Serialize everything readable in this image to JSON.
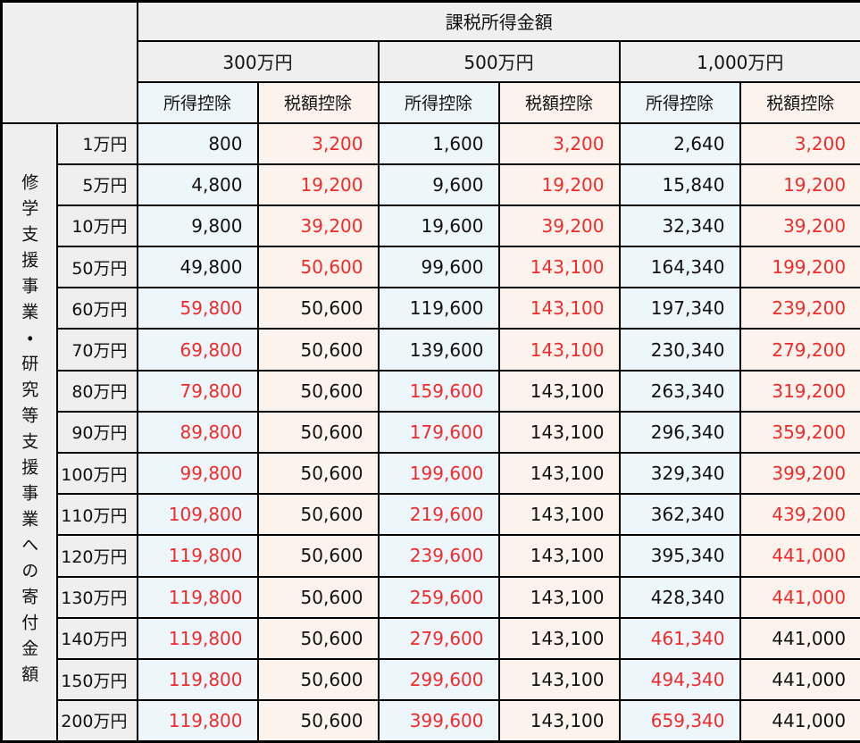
{
  "palette": {
    "border": "#000000",
    "header_bg": "#efefef",
    "income_deduction_col_bg": "#edf6fb",
    "tax_credit_col_bg": "#fcf4ec",
    "normal_text": "#111111",
    "highlight_red_text": "#f12b2b",
    "page_bg": "#ffffff"
  },
  "table": {
    "column_axis_title": "課税所得金額",
    "row_axis_title": "修学支援事業・研究等支援事業への寄付金額",
    "income_groups": [
      {
        "label": "300万円"
      },
      {
        "label": "500万円"
      },
      {
        "label": "1,000万円"
      }
    ],
    "sub_headers": [
      "所得控除",
      "税額控除"
    ],
    "rows": [
      {
        "label": "1万円",
        "values": [
          "800",
          "3,200",
          "1,600",
          "3,200",
          "2,640",
          "3,200"
        ],
        "red": [
          false,
          true,
          false,
          true,
          false,
          true
        ]
      },
      {
        "label": "5万円",
        "values": [
          "4,800",
          "19,200",
          "9,600",
          "19,200",
          "15,840",
          "19,200"
        ],
        "red": [
          false,
          true,
          false,
          true,
          false,
          true
        ]
      },
      {
        "label": "10万円",
        "values": [
          "9,800",
          "39,200",
          "19,600",
          "39,200",
          "32,340",
          "39,200"
        ],
        "red": [
          false,
          true,
          false,
          true,
          false,
          true
        ]
      },
      {
        "label": "50万円",
        "values": [
          "49,800",
          "50,600",
          "99,600",
          "143,100",
          "164,340",
          "199,200"
        ],
        "red": [
          false,
          true,
          false,
          true,
          false,
          true
        ]
      },
      {
        "label": "60万円",
        "values": [
          "59,800",
          "50,600",
          "119,600",
          "143,100",
          "197,340",
          "239,200"
        ],
        "red": [
          true,
          false,
          false,
          true,
          false,
          true
        ]
      },
      {
        "label": "70万円",
        "values": [
          "69,800",
          "50,600",
          "139,600",
          "143,100",
          "230,340",
          "279,200"
        ],
        "red": [
          true,
          false,
          false,
          true,
          false,
          true
        ]
      },
      {
        "label": "80万円",
        "values": [
          "79,800",
          "50,600",
          "159,600",
          "143,100",
          "263,340",
          "319,200"
        ],
        "red": [
          true,
          false,
          true,
          false,
          false,
          true
        ]
      },
      {
        "label": "90万円",
        "values": [
          "89,800",
          "50,600",
          "179,600",
          "143,100",
          "296,340",
          "359,200"
        ],
        "red": [
          true,
          false,
          true,
          false,
          false,
          true
        ]
      },
      {
        "label": "100万円",
        "values": [
          "99,800",
          "50,600",
          "199,600",
          "143,100",
          "329,340",
          "399,200"
        ],
        "red": [
          true,
          false,
          true,
          false,
          false,
          true
        ]
      },
      {
        "label": "110万円",
        "values": [
          "109,800",
          "50,600",
          "219,600",
          "143,100",
          "362,340",
          "439,200"
        ],
        "red": [
          true,
          false,
          true,
          false,
          false,
          true
        ]
      },
      {
        "label": "120万円",
        "values": [
          "119,800",
          "50,600",
          "239,600",
          "143,100",
          "395,340",
          "441,000"
        ],
        "red": [
          true,
          false,
          true,
          false,
          false,
          true
        ]
      },
      {
        "label": "130万円",
        "values": [
          "119,800",
          "50,600",
          "259,600",
          "143,100",
          "428,340",
          "441,000"
        ],
        "red": [
          true,
          false,
          true,
          false,
          false,
          true
        ]
      },
      {
        "label": "140万円",
        "values": [
          "119,800",
          "50,600",
          "279,600",
          "143,100",
          "461,340",
          "441,000"
        ],
        "red": [
          true,
          false,
          true,
          false,
          true,
          false
        ]
      },
      {
        "label": "150万円",
        "values": [
          "119,800",
          "50,600",
          "299,600",
          "143,100",
          "494,340",
          "441,000"
        ],
        "red": [
          true,
          false,
          true,
          false,
          true,
          false
        ]
      },
      {
        "label": "200万円",
        "values": [
          "119,800",
          "50,600",
          "399,600",
          "143,100",
          "659,340",
          "441,000"
        ],
        "red": [
          true,
          false,
          true,
          false,
          true,
          false
        ]
      }
    ]
  },
  "chart_data": {
    "type": "table",
    "title": "課税所得金額",
    "row_axis_title": "修学支援事業・研究等支援事業への寄付金額",
    "column_groups": [
      "300万円",
      "500万円",
      "1,000万円"
    ],
    "columns": [
      "300万円 所得控除",
      "300万円 税額控除",
      "500万円 所得控除",
      "500万円 税額控除",
      "1,000万円 所得控除",
      "1,000万円 税額控除"
    ],
    "row_labels": [
      "1万円",
      "5万円",
      "10万円",
      "50万円",
      "60万円",
      "70万円",
      "80万円",
      "90万円",
      "100万円",
      "110万円",
      "120万円",
      "130万円",
      "140万円",
      "150万円",
      "200万円"
    ],
    "values": [
      [
        800,
        3200,
        1600,
        3200,
        2640,
        3200
      ],
      [
        4800,
        19200,
        9600,
        19200,
        15840,
        19200
      ],
      [
        9800,
        39200,
        19600,
        39200,
        32340,
        39200
      ],
      [
        49800,
        50600,
        99600,
        143100,
        164340,
        199200
      ],
      [
        59800,
        50600,
        119600,
        143100,
        197340,
        239200
      ],
      [
        69800,
        50600,
        139600,
        143100,
        230340,
        279200
      ],
      [
        79800,
        50600,
        159600,
        143100,
        263340,
        319200
      ],
      [
        89800,
        50600,
        179600,
        143100,
        296340,
        359200
      ],
      [
        99800,
        50600,
        199600,
        143100,
        329340,
        399200
      ],
      [
        109800,
        50600,
        219600,
        143100,
        362340,
        439200
      ],
      [
        119800,
        50600,
        239600,
        143100,
        395340,
        441000
      ],
      [
        119800,
        50600,
        259600,
        143100,
        428340,
        441000
      ],
      [
        119800,
        50600,
        279600,
        143100,
        461340,
        441000
      ],
      [
        119800,
        50600,
        299600,
        143100,
        494340,
        441000
      ],
      [
        119800,
        50600,
        399600,
        143100,
        659340,
        441000
      ]
    ],
    "red_highlight_means": "larger deduction of the pair",
    "legend_position": "none",
    "grid": true
  }
}
